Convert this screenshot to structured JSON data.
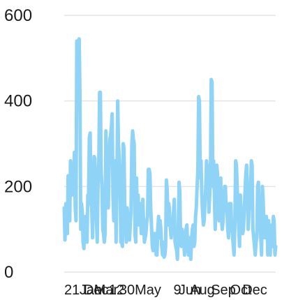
{
  "chart_data": {
    "type": "line",
    "title": "",
    "xlabel": "",
    "ylabel": "",
    "ylim": [
      0,
      600
    ],
    "y_ticks": [
      0,
      200,
      400,
      600
    ],
    "grid": true,
    "legend": "none",
    "x_tick_labels": [
      "21 Dec",
      "Jan",
      "Mar",
      "12",
      "30",
      "May",
      "9",
      "Jun",
      "Aug",
      "Sep",
      "Oct",
      "Dec"
    ],
    "series": [
      {
        "color": "#8fd3f7",
        "values": [
          150,
          75,
          160,
          110,
          90,
          225,
          150,
          120,
          260,
          230,
          180,
          240,
          200,
          280,
          150,
          120,
          540,
          480,
          380,
          545,
          420,
          100,
          160,
          140,
          70,
          55,
          100,
          130,
          90,
          70,
          180,
          180,
          315,
          325,
          160,
          150,
          80,
          170,
          270,
          265,
          200,
          120,
          70,
          200,
          260,
          420,
          420,
          240,
          200,
          100,
          90,
          70,
          90,
          330,
          210,
          180,
          150,
          240,
          310,
          320,
          340,
          370,
          180,
          120,
          240,
          260,
          70,
          210,
          400,
          300,
          270,
          210,
          70,
          70,
          60,
          300,
          290,
          160,
          110,
          70,
          150,
          130,
          100,
          75,
          110,
          140,
          300,
          330,
          310,
          300,
          90,
          70,
          220,
          110,
          180,
          110,
          160,
          130,
          90,
          150,
          170,
          110,
          70,
          80,
          90,
          120,
          130,
          240,
          240,
          230,
          150,
          110,
          60,
          50,
          90,
          70,
          90,
          40,
          40,
          100,
          130,
          80,
          120,
          100,
          60,
          40,
          70,
          35,
          40,
          60,
          215,
          190,
          110,
          160,
          140,
          100,
          80,
          110,
          90,
          140,
          170,
          70,
          60,
          50,
          30,
          90,
          210,
          190,
          80,
          60,
          100,
          70,
          80,
          40,
          90,
          100,
          110,
          60,
          40,
          80,
          60,
          30,
          80,
          100,
          110,
          60,
          70,
          130,
          150,
          200,
          240,
          410,
          400,
          220,
          260,
          180,
          140,
          110,
          120,
          160,
          200,
          260,
          200,
          250,
          140,
          180,
          220,
          450,
          445,
          200,
          260,
          180,
          100,
          160,
          250,
          230,
          140,
          120,
          170,
          220,
          130,
          100,
          120,
          160,
          200,
          200,
          150,
          140,
          100,
          80,
          160,
          130,
          160,
          100,
          90,
          60,
          40,
          100,
          260,
          250,
          200,
          150,
          100,
          60,
          180,
          140,
          110,
          90,
          100,
          140,
          190,
          230,
          250,
          200,
          100,
          140,
          180,
          200,
          260,
          250,
          100,
          80,
          60,
          40,
          70,
          80,
          200,
          210,
          140,
          120,
          80,
          40,
          200,
          170,
          110,
          80,
          100,
          130,
          110,
          40,
          120,
          60,
          40,
          100,
          110,
          60,
          130,
          120,
          40,
          60
        ]
      }
    ]
  }
}
